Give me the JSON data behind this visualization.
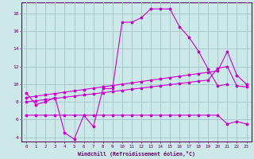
{
  "xlabel": "Windchill (Refroidissement éolien,°C)",
  "background_color": "#cce8e8",
  "line_color": "#cc00cc",
  "grid_color": "#aacccc",
  "axis_color": "#660066",
  "xlim": [
    -0.5,
    23.5
  ],
  "ylim": [
    3.5,
    19.2
  ],
  "yticks": [
    4,
    6,
    8,
    10,
    12,
    14,
    16,
    18
  ],
  "xticks": [
    0,
    1,
    2,
    3,
    4,
    5,
    6,
    7,
    8,
    9,
    10,
    11,
    12,
    13,
    14,
    15,
    16,
    17,
    18,
    19,
    20,
    21,
    22,
    23
  ],
  "line1_x": [
    0,
    1,
    2,
    3,
    4,
    5,
    6,
    7,
    8,
    9,
    10,
    11,
    12,
    13,
    14,
    15,
    16,
    17,
    18,
    19,
    20,
    21
  ],
  "line1_y": [
    9.0,
    7.7,
    8.0,
    8.5,
    4.5,
    3.8,
    6.5,
    5.2,
    9.5,
    9.5,
    17.0,
    17.0,
    17.5,
    18.5,
    18.5,
    18.5,
    16.5,
    15.3,
    13.7,
    11.7,
    9.8,
    10.0
  ],
  "line2_x": [
    0,
    1,
    2,
    3,
    4,
    5,
    6,
    7,
    8,
    9,
    10,
    11,
    12,
    13,
    14,
    15,
    16,
    17,
    18,
    19,
    20,
    21,
    22,
    23
  ],
  "line2_y": [
    6.5,
    6.5,
    6.5,
    6.5,
    6.5,
    6.5,
    6.5,
    6.5,
    6.5,
    6.5,
    6.5,
    6.5,
    6.5,
    6.5,
    6.5,
    6.5,
    6.5,
    6.5,
    6.5,
    6.5,
    6.5,
    5.5,
    5.8,
    5.5
  ],
  "line3_x": [
    0,
    1,
    2,
    3,
    4,
    5,
    6,
    7,
    8,
    9,
    10,
    11,
    12,
    13,
    14,
    15,
    16,
    17,
    18,
    19,
    20,
    21,
    22,
    23
  ],
  "line3_y": [
    8.5,
    8.65,
    8.8,
    8.95,
    9.1,
    9.25,
    9.4,
    9.55,
    9.7,
    9.85,
    10.0,
    10.15,
    10.3,
    10.45,
    10.6,
    10.75,
    10.9,
    11.05,
    11.2,
    11.35,
    11.5,
    13.7,
    11.0,
    10.0
  ],
  "line4_x": [
    0,
    1,
    2,
    3,
    4,
    5,
    6,
    7,
    8,
    9,
    10,
    11,
    12,
    13,
    14,
    15,
    16,
    17,
    18,
    19,
    20,
    21,
    22,
    23
  ],
  "line4_y": [
    8.0,
    8.13,
    8.26,
    8.39,
    8.52,
    8.65,
    8.78,
    8.91,
    9.04,
    9.17,
    9.3,
    9.43,
    9.56,
    9.69,
    9.82,
    9.95,
    10.08,
    10.21,
    10.34,
    10.47,
    11.8,
    12.0,
    9.8,
    9.7
  ]
}
